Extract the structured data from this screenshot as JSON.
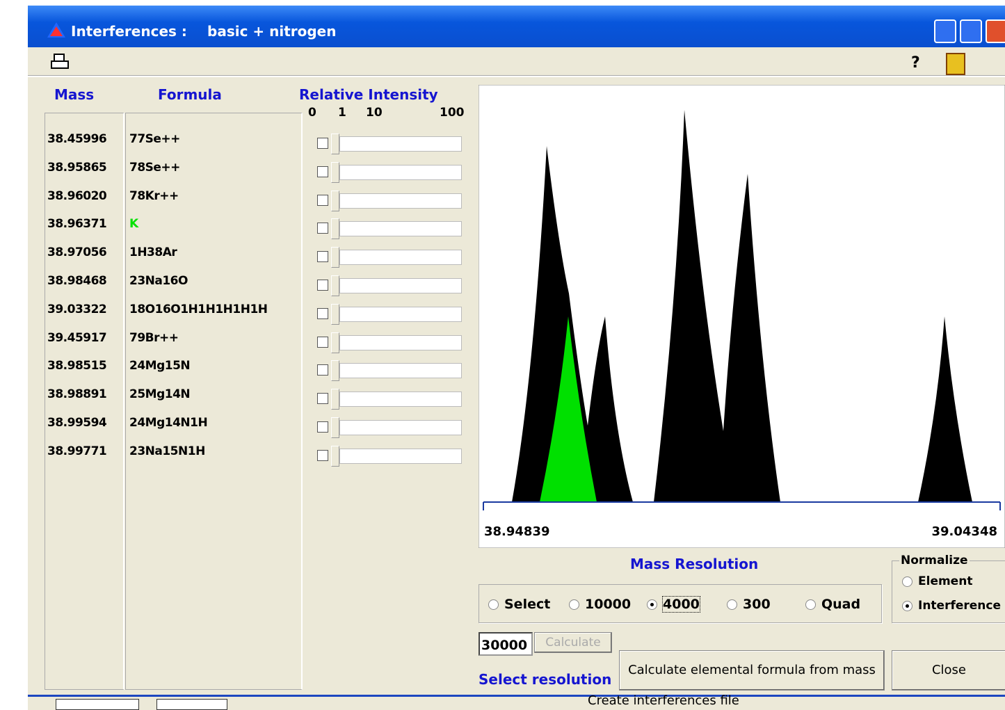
{
  "window": {
    "title": "Interferences :",
    "subtitle": "basic + nitrogen",
    "help": "?"
  },
  "table": {
    "headers": [
      "Mass",
      "Formula",
      "Relative Intensity"
    ],
    "scale": [
      "0",
      "1",
      "10",
      "100"
    ],
    "rows": [
      {
        "mass": "38.45996",
        "formula": "77Se++"
      },
      {
        "mass": "38.95865",
        "formula": "78Se++"
      },
      {
        "mass": "38.96020",
        "formula": "78Kr++"
      },
      {
        "mass": "38.96371",
        "formula": "K",
        "color": "#00e000"
      },
      {
        "mass": "38.97056",
        "formula": "1H38Ar"
      },
      {
        "mass": "38.98468",
        "formula": "23Na16O"
      },
      {
        "mass": "39.03322",
        "formula": "18O16O1H1H1H1H1H"
      },
      {
        "mass": "39.45917",
        "formula": "79Br++"
      },
      {
        "mass": "38.98515",
        "formula": "24Mg15N"
      },
      {
        "mass": "38.98891",
        "formula": "25Mg14N"
      },
      {
        "mass": "38.99594",
        "formula": "24Mg14N1H"
      },
      {
        "mass": "38.99771",
        "formula": "23Na15N1H"
      }
    ]
  },
  "plot": {
    "x_start": "38.94839",
    "x_end": "39.04348"
  },
  "resolution": {
    "label": "Mass Resolution",
    "options": [
      "Select",
      "10000",
      "4000",
      "300",
      "Quad"
    ],
    "selected": 2,
    "input": "30000",
    "calculate": "Calculate",
    "select_label": "Select resolution"
  },
  "normalize": {
    "label": "Normalize",
    "options": [
      "Element",
      "Interference"
    ],
    "selected": 1
  },
  "buttons": {
    "formula": "Calculate elemental formula from mass",
    "close": "Close"
  },
  "status": "Create interferences file"
}
